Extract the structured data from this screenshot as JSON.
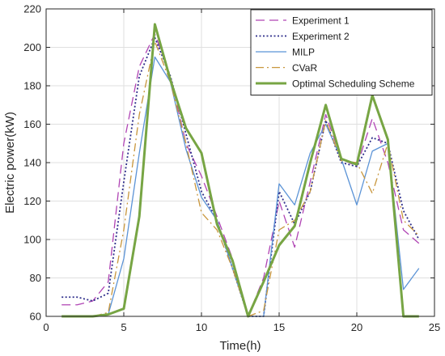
{
  "chart_data": {
    "type": "line",
    "xlabel": "Time(h)",
    "ylabel": "Electric power(kW)",
    "xlim": [
      0,
      25
    ],
    "ylim": [
      60,
      220
    ],
    "xticks": [
      0,
      5,
      10,
      15,
      20,
      25
    ],
    "yticks": [
      60,
      80,
      100,
      120,
      140,
      160,
      180,
      200,
      220
    ],
    "grid": true,
    "legend_position": "top-right",
    "x": [
      1,
      2,
      3,
      4,
      5,
      6,
      7,
      8,
      9,
      10,
      11,
      12,
      13,
      14,
      15,
      16,
      17,
      18,
      19,
      20,
      21,
      22,
      23,
      24
    ],
    "series": [
      {
        "name": "Experiment 1",
        "color": "#b044b4",
        "dash": "11 6",
        "width": 1.3,
        "values": [
          66,
          66,
          68,
          78,
          150,
          190,
          207,
          185,
          150,
          133,
          112,
          90,
          60,
          80,
          120,
          96,
          130,
          165,
          142,
          138,
          163,
          140,
          105,
          98
        ]
      },
      {
        "name": "Experiment 2",
        "color": "#2d2d8a",
        "dash": "2 2.5",
        "width": 1.8,
        "values": [
          70,
          70,
          68,
          72,
          130,
          185,
          205,
          185,
          155,
          125,
          110,
          85,
          60,
          60,
          125,
          108,
          125,
          162,
          140,
          138,
          153,
          150,
          115,
          100
        ]
      },
      {
        "name": "MILP",
        "color": "#5b93d6",
        "dash": "",
        "width": 1.3,
        "values": [
          60,
          60,
          60,
          61,
          90,
          145,
          195,
          182,
          147,
          122,
          110,
          85,
          60,
          60,
          129,
          118,
          145,
          160,
          142,
          118,
          146,
          150,
          74,
          85
        ]
      },
      {
        "name": "CVaR",
        "color": "#c8963c",
        "dash": "10 4 2 4",
        "width": 1.3,
        "values": [
          60,
          60,
          60,
          62,
          105,
          165,
          203,
          182,
          150,
          114,
          105,
          85,
          60,
          63,
          105,
          110,
          125,
          162,
          141,
          140,
          124,
          150,
          110,
          102
        ]
      },
      {
        "name": "Optimal Scheduling Scheme",
        "color": "#77a544",
        "dash": "",
        "width": 3,
        "values": [
          60,
          60,
          60,
          61,
          64,
          112,
          212,
          183,
          158,
          145,
          108,
          89,
          60,
          78,
          97,
          107,
          140,
          170,
          142,
          139,
          175,
          152,
          60,
          60
        ]
      }
    ]
  }
}
